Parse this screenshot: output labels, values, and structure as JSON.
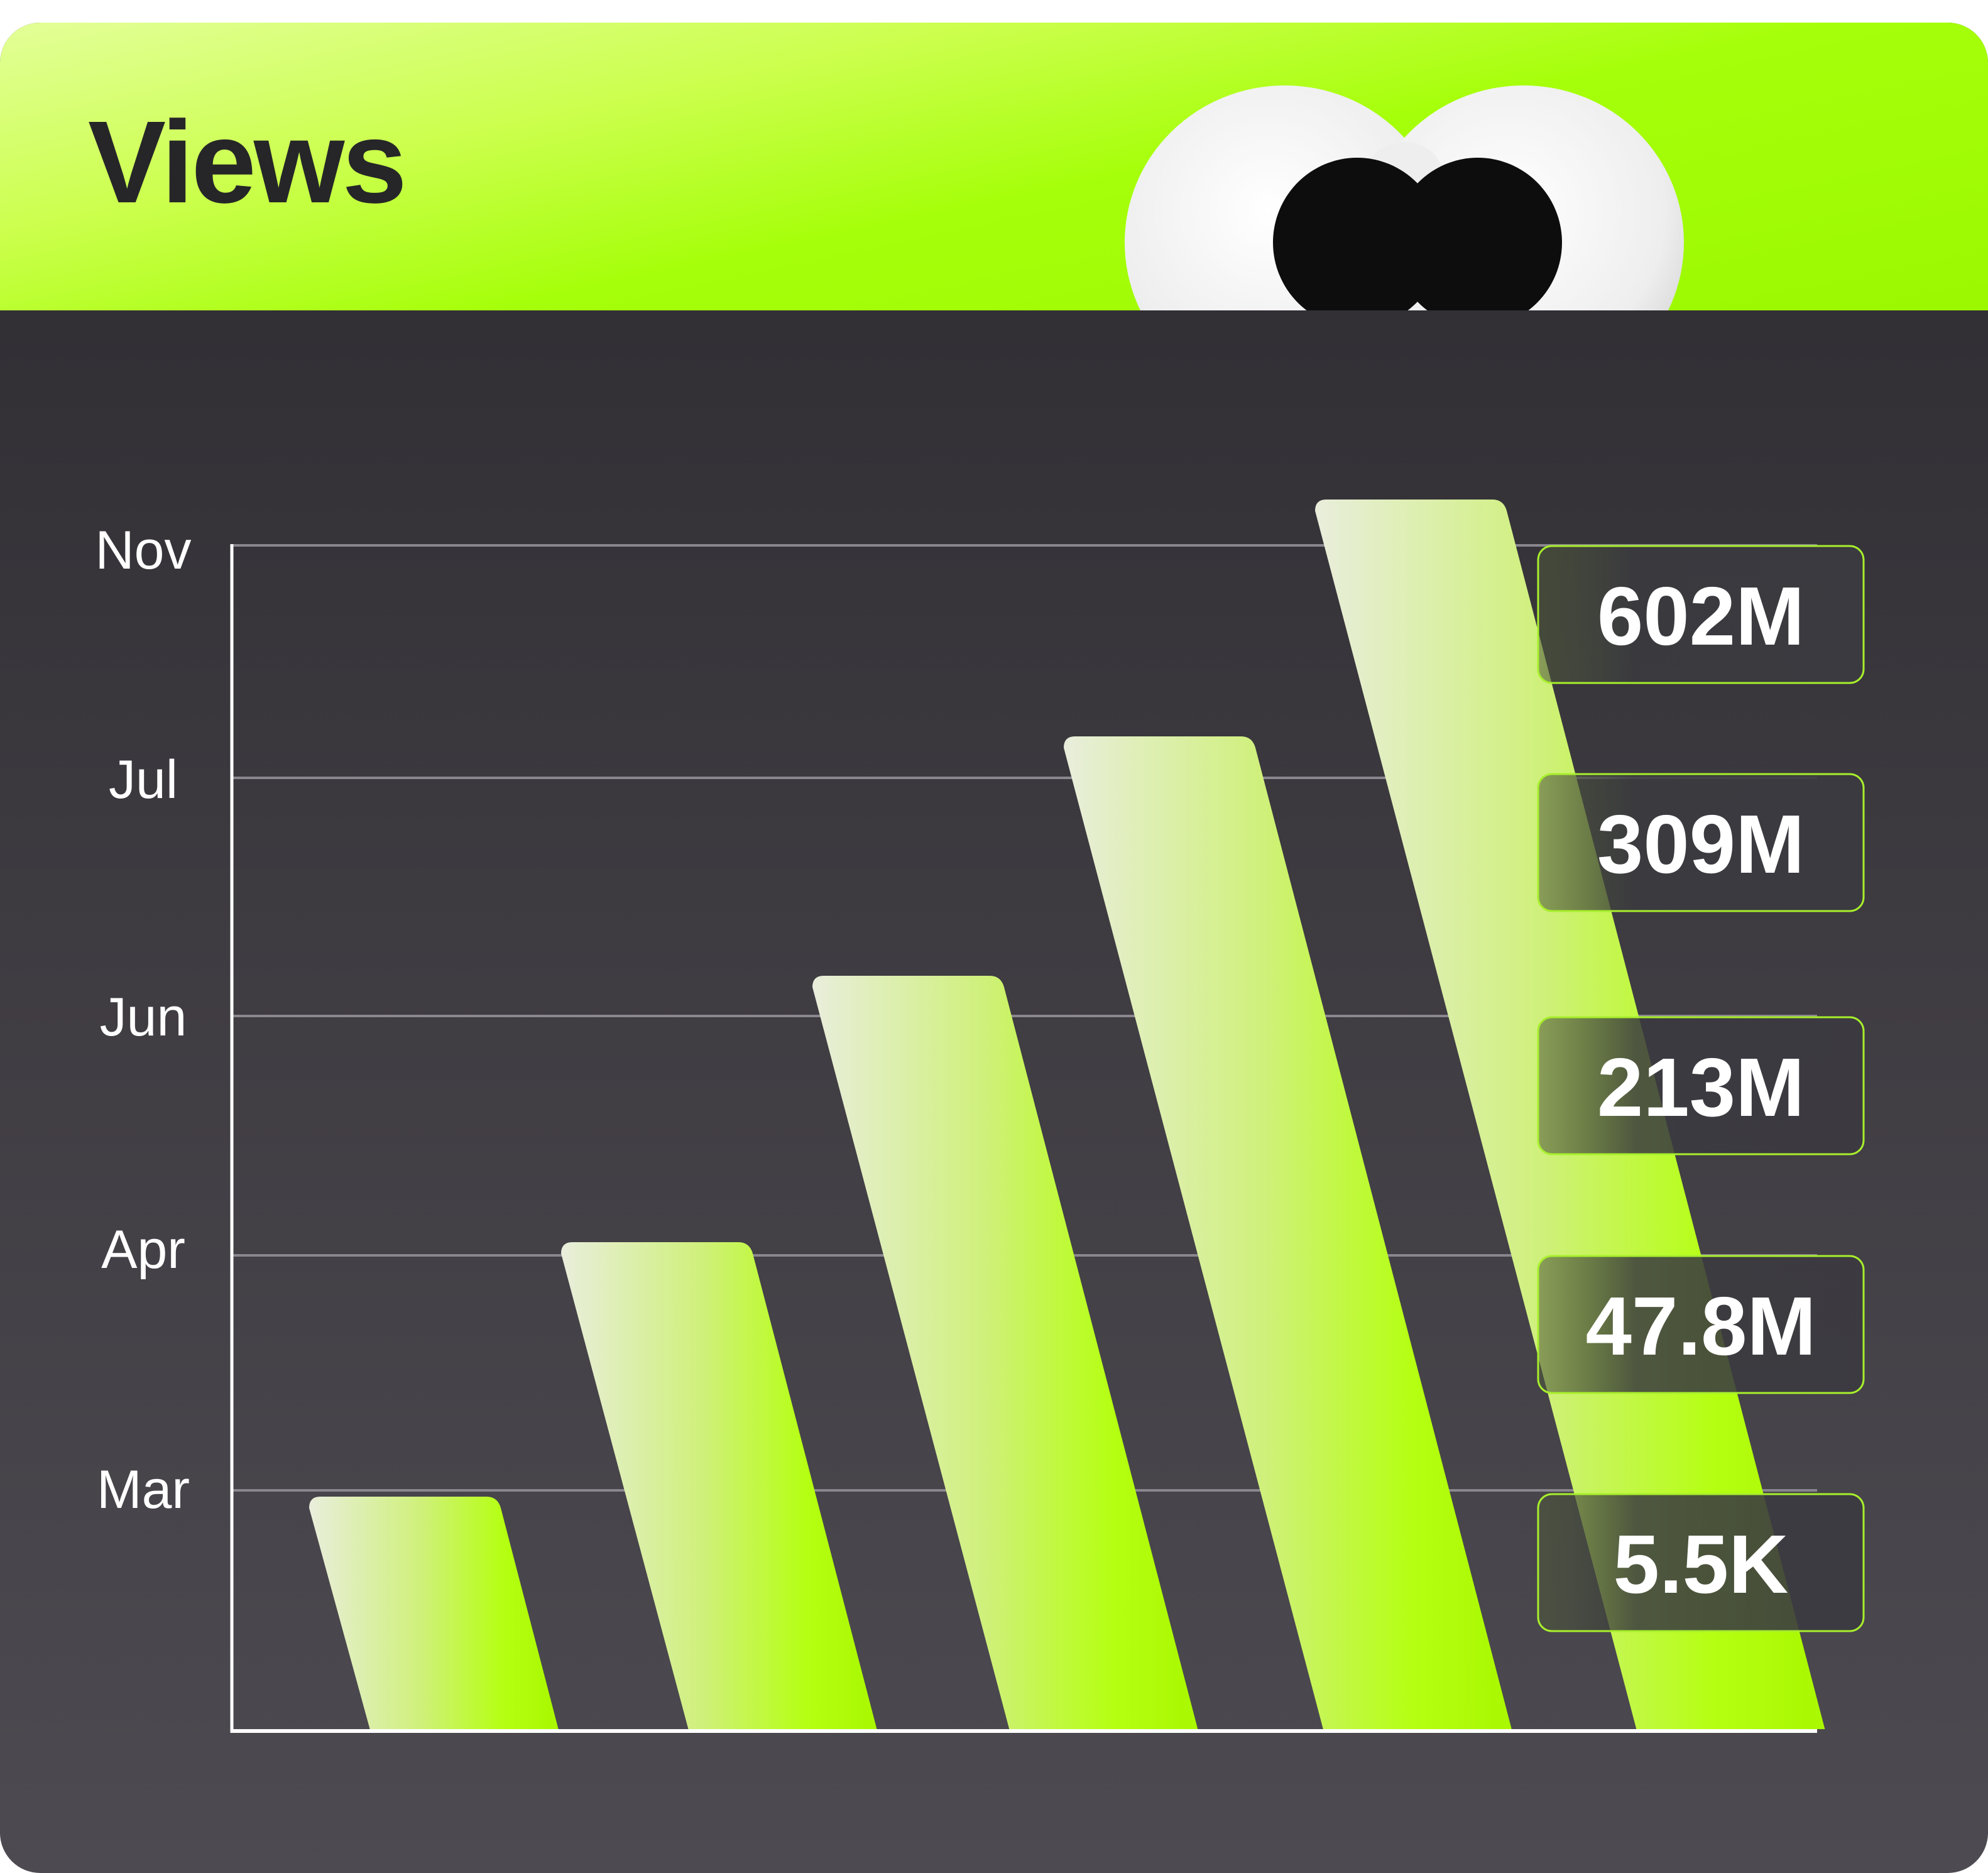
{
  "header": {
    "title": "Views"
  },
  "colors": {
    "accent": "#b6ff19",
    "header_bg": "#a6ff0a",
    "panel_bg": "#3a373d"
  },
  "icons": {
    "mascot": "googly-eyes-icon"
  },
  "chart_data": {
    "type": "bar",
    "title": "Views",
    "categories": [
      "Mar",
      "Apr",
      "Jun",
      "Jul",
      "Nov"
    ],
    "values": [
      5500,
      47800000,
      213000000,
      309000000,
      602000000
    ],
    "value_labels": [
      "5.5K",
      "47.8M",
      "213M",
      "309M",
      "602M"
    ],
    "ylabels": [
      "Nov",
      "Jul",
      "Jun",
      "Apr",
      "Mar"
    ],
    "grid": true,
    "legend": "none"
  }
}
